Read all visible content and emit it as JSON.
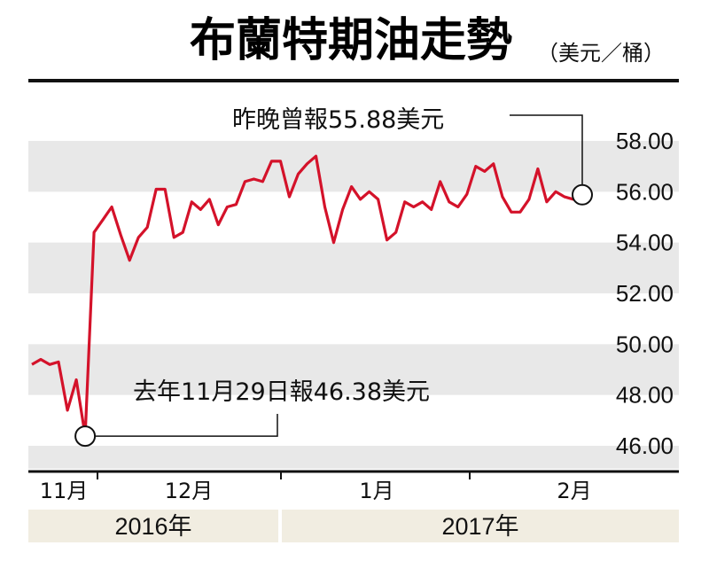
{
  "title": "布蘭特期油走勢",
  "unit": "（美元／桶）",
  "colors": {
    "line": "#d4122a",
    "band": "#e8e8e8",
    "year_band": "#f1ede1",
    "text": "#111111"
  },
  "annotations": {
    "latest": "昨晚曾報55.88美元",
    "low": "去年11月29日報46.38美元"
  },
  "months": [
    "11月",
    "12月",
    "1月",
    "2月"
  ],
  "years": [
    "2016年",
    "2017年"
  ],
  "chart_data": {
    "type": "line",
    "title": "布蘭特期油走勢",
    "unit": "美元／桶",
    "ylim": [
      45.1,
      59.1
    ],
    "yticks": [
      "46.00",
      "48.00",
      "50.00",
      "52.00",
      "54.00",
      "56.00",
      "58.00"
    ],
    "grid": "alternating horizontal bands",
    "series": [
      {
        "values": [
          49.2,
          49.4,
          49.2,
          49.3,
          47.4,
          48.6,
          46.4,
          54.4,
          54.9,
          55.4,
          54.3,
          53.3,
          54.2,
          54.6,
          56.1,
          56.1,
          54.2,
          54.4,
          55.6,
          55.3,
          55.7,
          54.7,
          55.4,
          55.5,
          56.4,
          56.5,
          56.4,
          57.2,
          57.2,
          55.8,
          56.7,
          57.1,
          57.4,
          55.4,
          54.0,
          55.3,
          56.2,
          55.7,
          56.0,
          55.7,
          54.1,
          54.4,
          55.6,
          55.4,
          55.6,
          55.3,
          56.4,
          55.6,
          55.4,
          55.9,
          57.0,
          56.8,
          57.1,
          55.8,
          55.2,
          55.2,
          55.7,
          56.9,
          55.6,
          56.0,
          55.8,
          55.7,
          55.88
        ]
      }
    ],
    "points": [
      {
        "label": "去年11月29日報46.38美元",
        "y": 46.38
      },
      {
        "label": "昨晚曾報55.88美元",
        "y": 55.88
      }
    ]
  }
}
